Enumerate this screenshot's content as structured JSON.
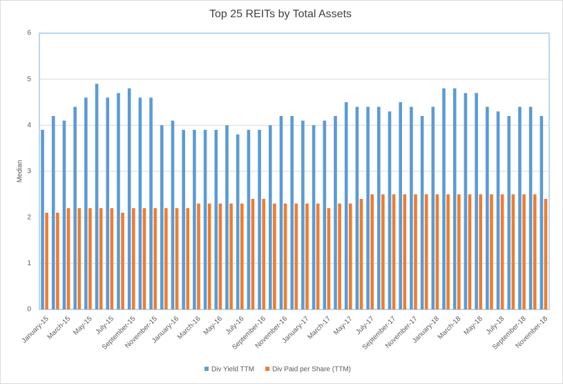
{
  "chart_data": {
    "type": "bar",
    "title": "Top 25 REITs by Total Assets",
    "y_label": "Median",
    "categories": [
      "January-15",
      null,
      "March-15",
      null,
      "May-15",
      null,
      "July-15",
      null,
      "September-15",
      null,
      "November-15",
      null,
      "January-16",
      null,
      "March-16",
      null,
      "May-16",
      null,
      "July-16",
      null,
      "September-16",
      null,
      "November-16",
      null,
      "January-17",
      null,
      "March-17",
      null,
      "May-17",
      null,
      "July-17",
      null,
      "September-17",
      null,
      "November-17",
      null,
      "January-18",
      null,
      "March-18",
      null,
      "May-18",
      null,
      "July-18",
      null,
      "September-18",
      null,
      "November-18"
    ],
    "series": [
      {
        "name": "Div Yield TTM",
        "color": "#5b9bd5",
        "values": [
          3.9,
          4.2,
          4.1,
          4.4,
          4.6,
          4.9,
          4.6,
          4.7,
          4.8,
          4.6,
          4.6,
          4.0,
          4.1,
          3.9,
          3.9,
          3.9,
          3.9,
          4.0,
          3.8,
          3.9,
          3.9,
          4.0,
          4.2,
          4.2,
          4.1,
          4.0,
          4.1,
          4.2,
          4.5,
          4.4,
          4.4,
          4.4,
          4.3,
          4.5,
          4.4,
          4.2,
          4.4,
          4.8,
          4.8,
          4.7,
          4.7,
          4.4,
          4.3,
          4.2,
          4.4,
          4.4,
          4.2
        ]
      },
      {
        "name": "Div Paid per Share (TTM)",
        "color": "#ed7d31",
        "values": [
          2.1,
          2.1,
          2.2,
          2.2,
          2.2,
          2.2,
          2.2,
          2.1,
          2.2,
          2.2,
          2.2,
          2.2,
          2.2,
          2.2,
          2.3,
          2.3,
          2.3,
          2.3,
          2.3,
          2.4,
          2.4,
          2.3,
          2.3,
          2.3,
          2.3,
          2.3,
          2.2,
          2.3,
          2.3,
          2.4,
          2.5,
          2.5,
          2.5,
          2.5,
          2.5,
          2.5,
          2.5,
          2.5,
          2.5,
          2.5,
          2.5,
          2.5,
          2.5,
          2.5,
          2.5,
          2.5,
          2.4
        ]
      }
    ],
    "ylim": [
      0,
      6
    ],
    "yticks": [
      0,
      1,
      2,
      3,
      4,
      5,
      6
    ],
    "grid": true,
    "legend": "bottom"
  }
}
